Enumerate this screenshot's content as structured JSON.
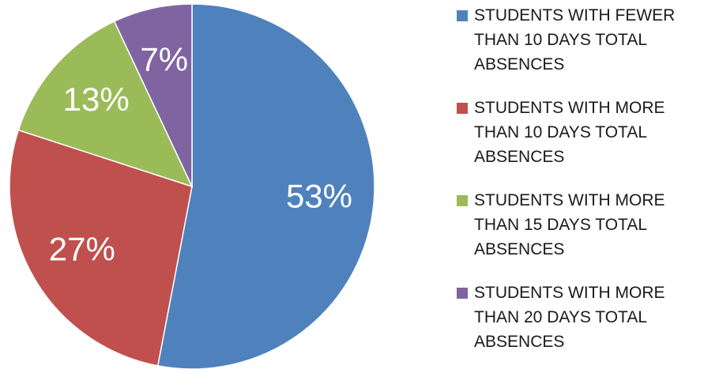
{
  "chart_data": {
    "type": "pie",
    "categories": [
      "STUDENTS WITH FEWER THAN 10 DAYS TOTAL ABSENCES",
      "STUDENTS WITH MORE THAN 10 DAYS TOTAL ABSENCES",
      "STUDENTS WITH MORE THAN 15 DAYS TOTAL ABSENCES",
      "STUDENTS WITH MORE THAN 20 DAYS TOTAL ABSENCES"
    ],
    "values": [
      53,
      27,
      13,
      7
    ],
    "value_labels": [
      "53%",
      "27%",
      "13%",
      "7%"
    ],
    "colors": [
      "#4f81bd",
      "#c0504d",
      "#9bbb59",
      "#8064a2"
    ],
    "legend": "right"
  }
}
